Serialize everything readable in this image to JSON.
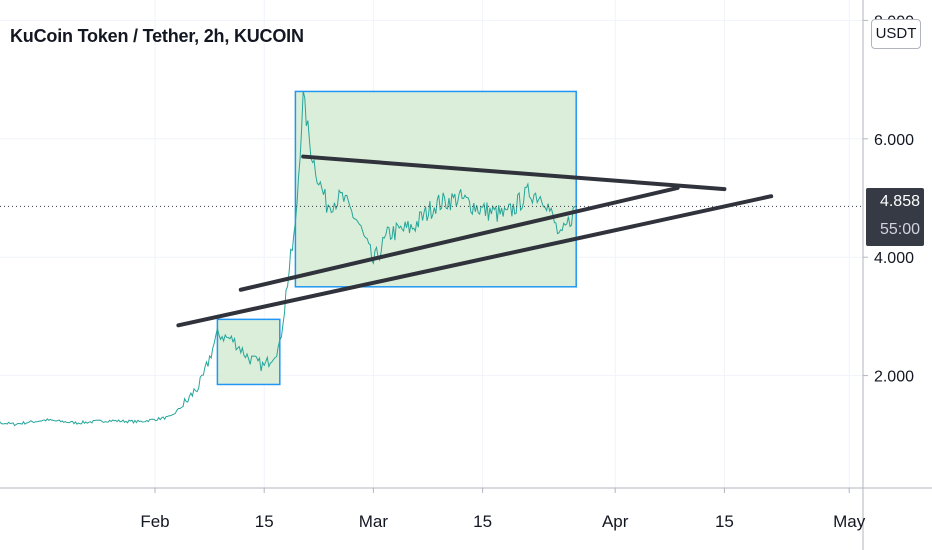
{
  "title": "KuCoin Token / Tether, 2h, KUCOIN",
  "currency_button": "USDT",
  "last_price": "4.858",
  "countdown": "55:00",
  "colors": {
    "candles": "#26a69a",
    "box_stroke": "#2196f3",
    "box_fill": "#d7ecd5",
    "trendline": "#30333b",
    "axis_text": "#131722",
    "price_label_bg": "#363a45"
  },
  "chart_data": {
    "type": "line",
    "title": "KuCoin Token / Tether, 2h, KUCOIN",
    "xlabel": "",
    "ylabel": "",
    "x_ticks": [
      "Feb",
      "15",
      "Mar",
      "15",
      "Apr",
      "15",
      "May"
    ],
    "y_ticks": [
      "8.000",
      "6.000",
      "4.000",
      "2.000"
    ],
    "ylim": [
      0,
      8
    ],
    "series": [
      {
        "x": [
          "2021-01-06",
          "2021-01-10",
          "2021-01-14",
          "2021-01-18",
          "2021-01-22",
          "2021-01-26",
          "2021-01-30",
          "2021-02-03",
          "2021-02-05",
          "2021-02-07",
          "2021-02-09",
          "2021-02-11",
          "2021-02-13",
          "2021-02-15",
          "2021-02-17",
          "2021-02-18",
          "2021-02-19",
          "2021-02-20",
          "2021-02-21",
          "2021-02-22",
          "2021-02-23",
          "2021-02-25",
          "2021-02-27",
          "2021-03-01",
          "2021-03-03",
          "2021-03-06",
          "2021-03-09",
          "2021-03-12",
          "2021-03-15",
          "2021-03-18",
          "2021-03-21",
          "2021-03-23",
          "2021-03-25",
          "2021-03-27"
        ],
        "values": [
          1.15,
          1.23,
          1.18,
          1.25,
          1.2,
          1.24,
          1.22,
          1.3,
          1.55,
          1.9,
          2.7,
          2.6,
          2.3,
          2.15,
          2.5,
          3.6,
          4.5,
          6.7,
          5.8,
          5.3,
          4.9,
          5.0,
          4.6,
          3.9,
          4.4,
          4.5,
          4.9,
          5.0,
          4.8,
          4.7,
          5.1,
          5.0,
          4.3,
          4.86
        ]
      }
    ],
    "annotations": [
      {
        "type": "box",
        "x": [
          "2021-02-09",
          "2021-02-17"
        ],
        "y": [
          1.85,
          2.95
        ]
      },
      {
        "type": "box",
        "x": [
          "2021-02-19",
          "2021-03-27"
        ],
        "y": [
          3.5,
          6.8
        ]
      },
      {
        "type": "trendline",
        "x": [
          "2021-02-20",
          "2021-04-15"
        ],
        "y": [
          5.7,
          5.15
        ]
      },
      {
        "type": "trendline",
        "x": [
          "2021-02-12",
          "2021-04-09"
        ],
        "y": [
          3.45,
          5.17
        ]
      },
      {
        "type": "trendline",
        "x": [
          "2021-02-04",
          "2021-04-21"
        ],
        "y": [
          2.85,
          5.03
        ]
      }
    ]
  }
}
